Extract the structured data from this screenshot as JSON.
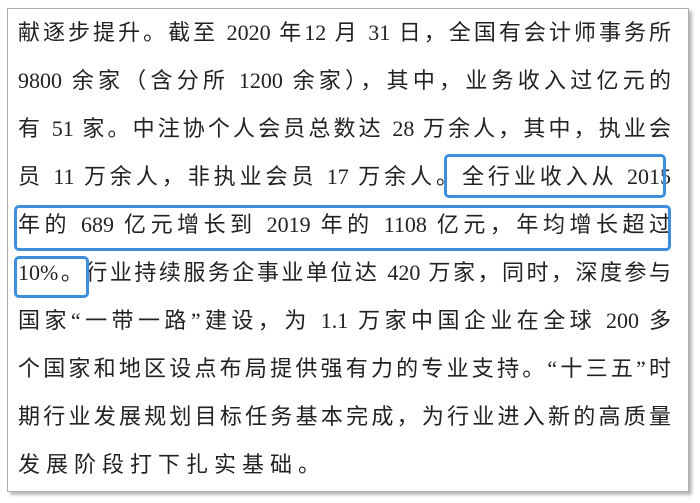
{
  "colors": {
    "highlight_blue": "#3E8EDD",
    "page_border_gray": "#ADADAD",
    "text_color": "#222222",
    "page_background": "#FFFFFF"
  },
  "document": {
    "lines": [
      "献逐步提升。截至 2020 年12 月 31 日，全国有会计师事务所",
      "9800 余家（含分所 1200 余家），其中，业务收入过亿元的",
      "有 51 家。中注协个人会员总数达 28 万余人，其中，执业会",
      "员 11 万余人，非执业会员 17 万余人。全行业收入从 2015",
      "年的 689 亿元增长到 2019 年的 1108 亿元，年均增长超过",
      "10%。行业持续服务企事业单位达 420 万家，同时，深度参与",
      "国家“一带一路”建设，为 1.1 万家中国企业在全球 200 多",
      "个国家和地区设点布局提供强有力的专业支持。“十三五”时",
      "期行业发展规划目标任务基本完成，为行业进入新的高质量",
      "发展阶段打下扎实基础。"
    ]
  },
  "annotations": {
    "highlighted_text": "全行业收入从 2015 年的 689 亿元增长到 2019 年的 1108 亿元，年均增长超过 10%。"
  }
}
